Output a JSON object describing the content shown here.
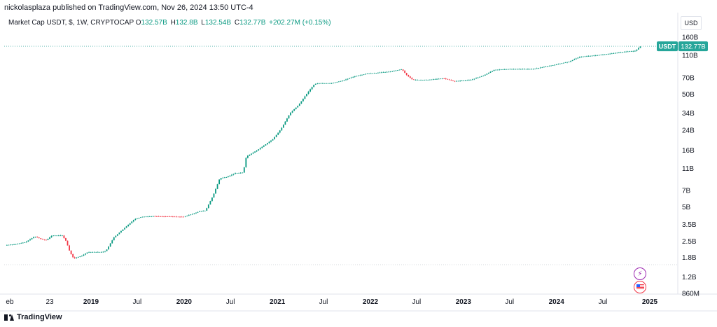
{
  "header": {
    "published_text": "nickolasplaza published on TradingView.com, Nov 26, 2024 13:50 UTC-4"
  },
  "legend": {
    "symbol_text": "Market Cap USDT, $, 1W, CRYPTOCAP",
    "open_label": "O",
    "open_value": "132.57B",
    "high_label": "H",
    "high_value": "132.8B",
    "low_label": "L",
    "low_value": "132.54B",
    "close_label": "C",
    "close_value": "132.77B",
    "change_value": "+202.27M (+0.15%)"
  },
  "currency": "USD",
  "price_tag": {
    "symbol": "USDT",
    "value": "132.77B"
  },
  "footer": {
    "brand": "TradingView"
  },
  "colors": {
    "up": "#089981",
    "down": "#f23645",
    "tag_bg": "#26a69a",
    "axis_text": "#131722",
    "border": "#e0e3eb",
    "lightning_icon": "#9c27b0",
    "flag_icon": "#f23645"
  },
  "icons": [
    "lightning-icon",
    "us-flag-icon",
    "tradingview-logo-icon"
  ],
  "chart_data": {
    "type": "candlestick",
    "scale": "log",
    "y_unit": "USD",
    "y_ticks": [
      "160B",
      "110B",
      "70B",
      "50B",
      "34B",
      "24B",
      "16B",
      "11B",
      "7B",
      "5B",
      "3.5B",
      "2.5B",
      "1.8B",
      "1.2B",
      "860M"
    ],
    "y_tick_values": [
      160,
      110,
      70,
      50,
      34,
      24,
      16,
      11,
      7,
      5,
      3.5,
      2.5,
      1.8,
      1.2,
      0.86
    ],
    "x_ticks": [
      {
        "label": "eb",
        "bold": false
      },
      {
        "label": "23",
        "bold": false
      },
      {
        "label": "2019",
        "bold": true
      },
      {
        "label": "Jul",
        "bold": false
      },
      {
        "label": "2020",
        "bold": true
      },
      {
        "label": "Jul",
        "bold": false
      },
      {
        "label": "2021",
        "bold": true
      },
      {
        "label": "Jul",
        "bold": false
      },
      {
        "label": "2022",
        "bold": true
      },
      {
        "label": "Jul",
        "bold": false
      },
      {
        "label": "2023",
        "bold": true
      },
      {
        "label": "Jul",
        "bold": false
      },
      {
        "label": "2024",
        "bold": true
      },
      {
        "label": "Jul",
        "bold": false
      },
      {
        "label": "2025",
        "bold": true
      }
    ],
    "x_tick_dates": [
      "2018-02-01",
      "2018-07-23",
      "2019-01-01",
      "2019-07-01",
      "2020-01-01",
      "2020-07-01",
      "2021-01-01",
      "2021-07-01",
      "2022-01-01",
      "2022-07-01",
      "2023-01-01",
      "2023-07-01",
      "2024-01-01",
      "2024-07-01",
      "2025-01-01"
    ],
    "anchors": [
      [
        "2018-01-29",
        2.3
      ],
      [
        "2018-03-15",
        2.35
      ],
      [
        "2018-04-20",
        2.45
      ],
      [
        "2018-05-25",
        2.75
      ],
      [
        "2018-06-20",
        2.6
      ],
      [
        "2018-07-10",
        2.55
      ],
      [
        "2018-08-01",
        2.8
      ],
      [
        "2018-09-10",
        2.8
      ],
      [
        "2018-09-25",
        2.5
      ],
      [
        "2018-10-10",
        2.0
      ],
      [
        "2018-10-25",
        1.75
      ],
      [
        "2018-11-25",
        1.85
      ],
      [
        "2018-12-20",
        2.0
      ],
      [
        "2019-02-15",
        2.0
      ],
      [
        "2019-03-01",
        2.05
      ],
      [
        "2019-04-01",
        2.7
      ],
      [
        "2019-05-15",
        3.3
      ],
      [
        "2019-06-20",
        3.9
      ],
      [
        "2019-07-20",
        4.1
      ],
      [
        "2019-08-30",
        4.15
      ],
      [
        "2019-12-31",
        4.1
      ],
      [
        "2020-03-05",
        4.6
      ],
      [
        "2020-03-25",
        4.65
      ],
      [
        "2020-04-25",
        6.4
      ],
      [
        "2020-05-20",
        9.0
      ],
      [
        "2020-06-15",
        9.2
      ],
      [
        "2020-07-20",
        10.0
      ],
      [
        "2020-08-20",
        10.1
      ],
      [
        "2020-09-01",
        14.0
      ],
      [
        "2020-10-15",
        16.0
      ],
      [
        "2020-12-15",
        20.0
      ],
      [
        "2021-01-15",
        24.5
      ],
      [
        "2021-02-20",
        34.0
      ],
      [
        "2021-03-25",
        40.0
      ],
      [
        "2021-04-25",
        50.0
      ],
      [
        "2021-05-25",
        61.0
      ],
      [
        "2021-06-10",
        62.5
      ],
      [
        "2021-08-01",
        62.5
      ],
      [
        "2021-09-15",
        66.0
      ],
      [
        "2021-11-01",
        72.0
      ],
      [
        "2021-12-20",
        76.0
      ],
      [
        "2022-03-15",
        79.0
      ],
      [
        "2022-05-05",
        83.0
      ],
      [
        "2022-05-20",
        75.0
      ],
      [
        "2022-06-15",
        67.0
      ],
      [
        "2022-08-15",
        67.0
      ],
      [
        "2022-10-15",
        69.0
      ],
      [
        "2022-11-25",
        65.0
      ],
      [
        "2023-02-01",
        67.0
      ],
      [
        "2023-03-20",
        73.0
      ],
      [
        "2023-05-01",
        82.0
      ],
      [
        "2023-07-01",
        83.5
      ],
      [
        "2023-10-01",
        83.5
      ],
      [
        "2023-12-15",
        90.0
      ],
      [
        "2024-02-20",
        97.0
      ],
      [
        "2024-04-01",
        107.0
      ],
      [
        "2024-07-01",
        112.0
      ],
      [
        "2024-10-01",
        119.0
      ],
      [
        "2024-11-05",
        121.0
      ],
      [
        "2024-11-26",
        132.77
      ]
    ]
  }
}
